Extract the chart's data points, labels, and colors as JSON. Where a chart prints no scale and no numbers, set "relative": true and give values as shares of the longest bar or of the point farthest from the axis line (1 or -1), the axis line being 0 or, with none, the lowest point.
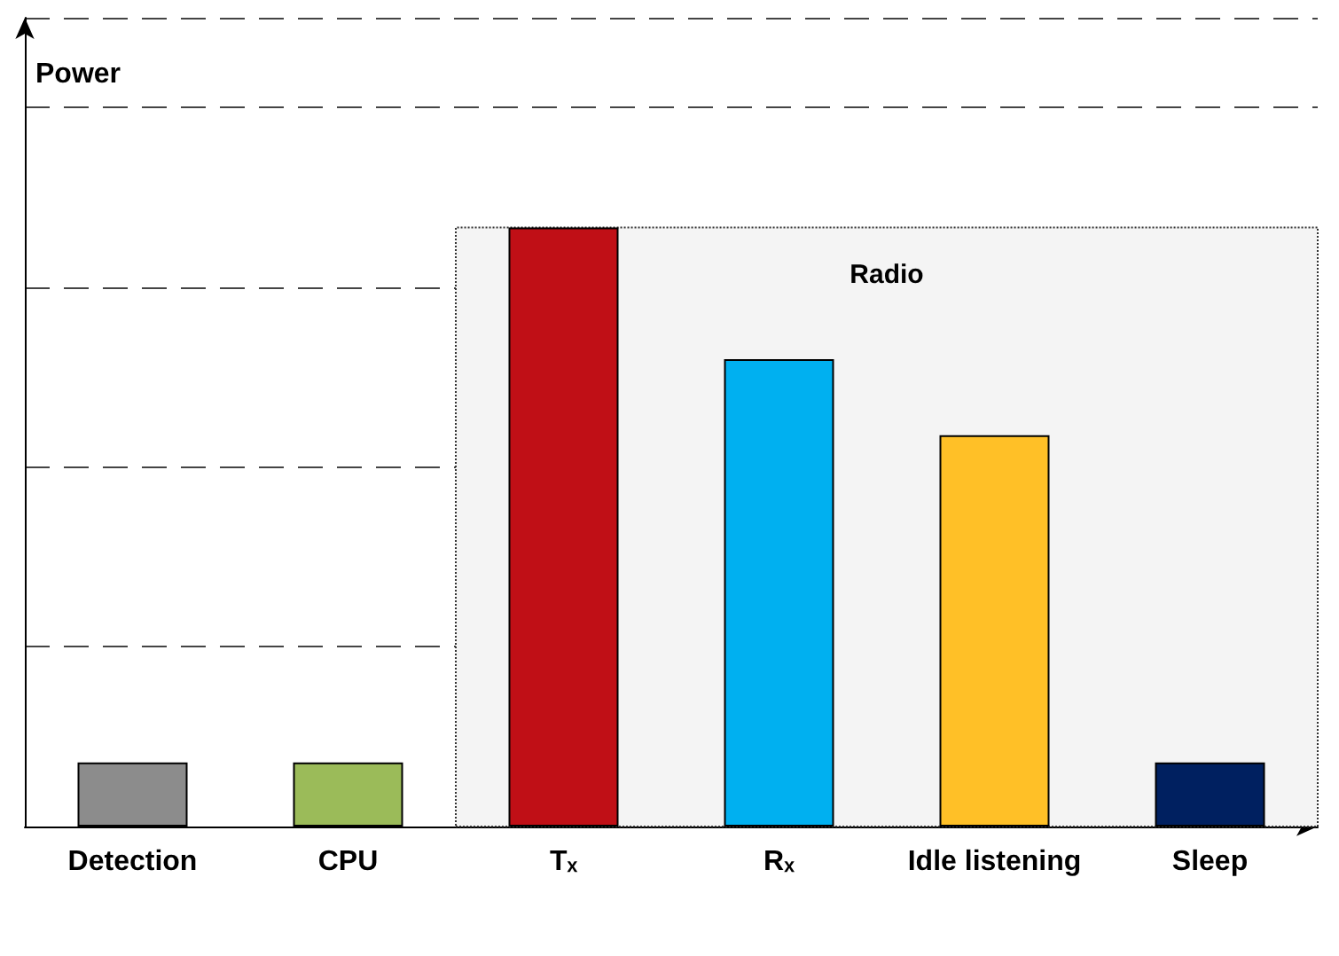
{
  "chart_data": {
    "type": "bar",
    "relative": true,
    "ylabel": "Power",
    "categories": [
      "Detection",
      "CPU",
      "Tₓ",
      "Rₓ",
      "Idle listening",
      "Sleep"
    ],
    "values": [
      0.107,
      0.107,
      1,
      0.78,
      0.653,
      0.107
    ],
    "colors": [
      "#8c8c8c",
      "#9bbb59",
      "#c00f16",
      "#00b0f0",
      "#ffc027",
      "#002060"
    ],
    "grid": "y",
    "bands": [
      {
        "axis": "x",
        "from": "Tₓ",
        "to": "Sleep",
        "label": "Radio"
      }
    ]
  }
}
